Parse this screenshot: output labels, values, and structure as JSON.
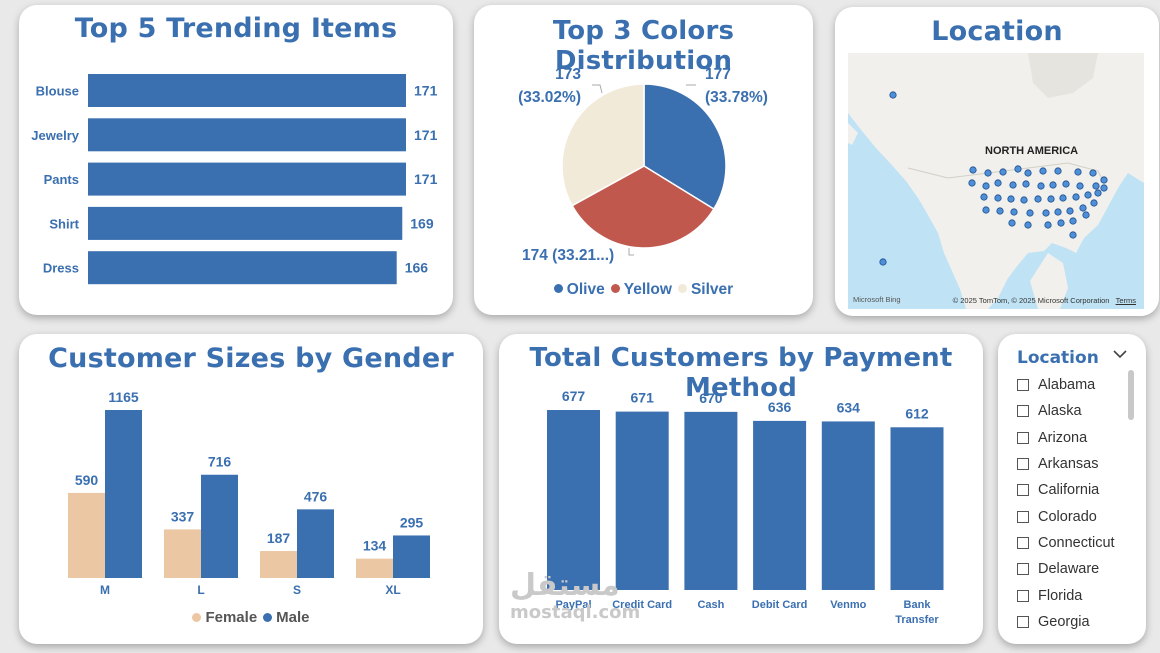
{
  "trending": {
    "title": "Top 5 Trending Items",
    "chart_data": {
      "type": "bar",
      "orientation": "horizontal",
      "categories": [
        "Blouse",
        "Jewelry",
        "Pants",
        "Shirt",
        "Dress"
      ],
      "values": [
        171,
        171,
        171,
        169,
        166
      ],
      "xlim": [
        0,
        171
      ]
    }
  },
  "colors": {
    "title": "Top 3 Colors Distribution",
    "chart_data": {
      "type": "pie",
      "categories": [
        "Olive",
        "Yellow",
        "Silver"
      ],
      "values": [
        177,
        174,
        173
      ],
      "data_labels": [
        "177\n(33.78%)",
        "174 (33.21...)",
        "173\n(33.02%)"
      ],
      "colors": [
        "#3a6fb0",
        "#c1584d",
        "#f2ead8"
      ],
      "legend": "bottom"
    },
    "labels": {
      "olive_1": "177",
      "olive_2": "(33.78%)",
      "yellow": "174 (33.21...)",
      "silver_1": "173",
      "silver_2": "(33.02%)"
    }
  },
  "location_map": {
    "title": "Location",
    "region_label": "NORTH AMERICA",
    "brand": "Microsoft Bing",
    "credit": "© 2025 TomTom, © 2025 Microsoft Corporation",
    "terms": "Terms"
  },
  "sizes": {
    "title": "Customer Sizes by Gender",
    "chart_data": {
      "type": "bar",
      "categories": [
        "M",
        "L",
        "S",
        "XL"
      ],
      "series": [
        {
          "name": "Female",
          "values": [
            590,
            337,
            187,
            134
          ],
          "color": "#ebc7a4"
        },
        {
          "name": "Male",
          "values": [
            1165,
            716,
            476,
            295
          ],
          "color": "#3a6fb0"
        }
      ],
      "ylim": [
        0,
        1165
      ],
      "legend": "bottom"
    }
  },
  "payment": {
    "title": "Total Customers by Payment Method",
    "chart_data": {
      "type": "bar",
      "categories": [
        "PayPal",
        "Credit Card",
        "Cash",
        "Debit Card",
        "Venmo",
        "Bank Transfer"
      ],
      "category_lines": [
        [
          "PayPal"
        ],
        [
          "Credit Card"
        ],
        [
          "Cash"
        ],
        [
          "Debit Card"
        ],
        [
          "Venmo"
        ],
        [
          "Bank",
          "Transfer"
        ]
      ],
      "values": [
        677,
        671,
        670,
        636,
        634,
        612
      ],
      "ylim": [
        0,
        677
      ]
    }
  },
  "slicer": {
    "title": "Location",
    "items": [
      "Alabama",
      "Alaska",
      "Arizona",
      "Arkansas",
      "California",
      "Colorado",
      "Connecticut",
      "Delaware",
      "Florida",
      "Georgia"
    ]
  },
  "watermark": {
    "line1": "مستقل",
    "line2": "mostaql.com"
  },
  "accent": "#3a6fb0"
}
